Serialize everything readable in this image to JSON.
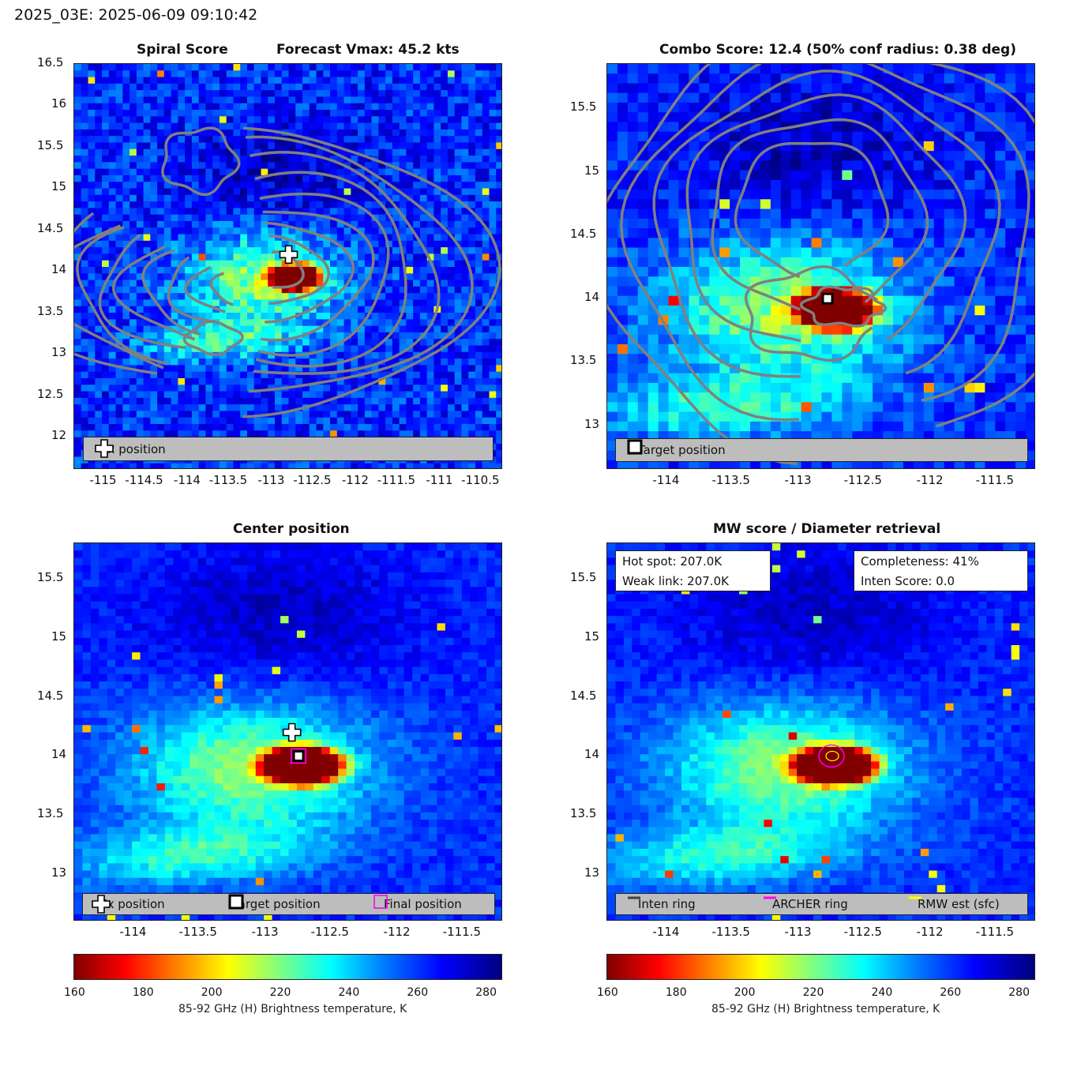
{
  "suptitle": "2025_03E: 2025-06-09 09:10:42",
  "colors": {
    "contour": "#808080",
    "legend_bg": "#bdbdbd",
    "magenta": "#ff00ff",
    "yellow": "#ffff00",
    "inten_ring": "#404040"
  },
  "colormap": "jet_reversed",
  "panels": [
    {
      "title_left": "Spiral Score",
      "title_right": "Forecast Vmax: 45.2 kts",
      "xticks": [
        "-115",
        "-114.5",
        "-114",
        "-113.5",
        "-113",
        "-112.5",
        "-112",
        "-111.5",
        "-111",
        "-110.5"
      ],
      "yticks": [
        "16.5",
        "16",
        "15.5",
        "15",
        "14.5",
        "14",
        "13.5",
        "13",
        "12.5",
        "12"
      ],
      "legend": [
        {
          "icon": "plus-icon",
          "label": "Fx position"
        }
      ]
    },
    {
      "title": "Combo Score: 12.4  (50% conf radius: 0.38 deg)",
      "xticks": [
        "-114",
        "-113.5",
        "-113",
        "-112.5",
        "-112",
        "-111.5"
      ],
      "yticks": [
        "15.5",
        "15",
        "14.5",
        "14",
        "13.5",
        "13"
      ],
      "legend": [
        {
          "icon": "target-square-icon",
          "label": "Target position"
        }
      ]
    },
    {
      "title": "Center position",
      "xticks": [
        "-114",
        "-113.5",
        "-113",
        "-112.5",
        "-112",
        "-111.5"
      ],
      "yticks": [
        "15.5",
        "15",
        "14.5",
        "14",
        "13.5",
        "13"
      ],
      "legend": [
        {
          "icon": "plus-icon",
          "label": "Fx position"
        },
        {
          "icon": "target-square-icon",
          "label": "Target position"
        },
        {
          "icon": "magenta-square-icon",
          "label": "Final position"
        }
      ]
    },
    {
      "title": "MW score / Diameter retrieval",
      "xticks": [
        "-114",
        "-113.5",
        "-113",
        "-112.5",
        "-112",
        "-111.5"
      ],
      "yticks": [
        "15.5",
        "15",
        "14.5",
        "14",
        "13.5",
        "13"
      ],
      "info_left": [
        "Hot spot: 207.0K",
        "Weak link: 207.0K"
      ],
      "info_right": [
        "Completeness: 41%",
        "Inten Score: 0.0"
      ],
      "legend": [
        {
          "icon": "dark-line-icon",
          "label": "Inten ring"
        },
        {
          "icon": "magenta-line-icon",
          "label": "ARCHER ring"
        },
        {
          "icon": "yellow-line-icon",
          "label": "RMW est (sfc)"
        }
      ]
    }
  ],
  "colorbar": {
    "ticks": [
      "160",
      "180",
      "200",
      "220",
      "240",
      "260",
      "280"
    ],
    "label": "85-92 GHz (H) Brightness temperature, K"
  },
  "chart_data": [
    {
      "type": "heatmap",
      "title": "Spiral Score",
      "subtitle": "Forecast Vmax: 45.2 kts",
      "xlim": [
        -115.35,
        -110.25
      ],
      "ylim": [
        11.6,
        16.5
      ],
      "fx_position": {
        "lon": -112.8,
        "lat": 14.2
      },
      "cold_core": {
        "lon": -112.75,
        "lat": 13.95,
        "min_tb": 160
      },
      "contours": true,
      "legend": [
        "Fx position"
      ],
      "legend_placement": "bottom"
    },
    {
      "type": "heatmap",
      "title": "Combo Score: 12.4  (50% conf radius: 0.38 deg)",
      "combo_score": 12.4,
      "conf_radius_deg": 0.38,
      "xlim": [
        -114.45,
        -111.2
      ],
      "ylim": [
        12.65,
        15.85
      ],
      "target_position": {
        "lon": -112.78,
        "lat": 14.0
      },
      "contours": true,
      "legend": [
        "Target position"
      ],
      "legend_placement": "bottom"
    },
    {
      "type": "heatmap",
      "title": "Center position",
      "xlim": [
        -114.45,
        -111.2
      ],
      "ylim": [
        12.6,
        15.8
      ],
      "fx_position": {
        "lon": -112.8,
        "lat": 14.2
      },
      "target_position": {
        "lon": -112.75,
        "lat": 14.0
      },
      "final_position": {
        "lon": -112.75,
        "lat": 14.0
      },
      "legend": [
        "Fx position",
        "Target position",
        "Final position"
      ],
      "legend_placement": "bottom"
    },
    {
      "type": "heatmap",
      "title": "MW score / Diameter retrieval",
      "xlim": [
        -114.45,
        -111.2
      ],
      "ylim": [
        12.6,
        15.8
      ],
      "hot_spot_K": 207.0,
      "weak_link_K": 207.0,
      "completeness_pct": 41,
      "inten_score": 0.0,
      "archer_ring_center": {
        "lon": -112.75,
        "lat": 14.0
      },
      "legend": [
        "Inten ring",
        "ARCHER ring",
        "RMW est (sfc)"
      ],
      "legend_placement": "bottom"
    }
  ]
}
